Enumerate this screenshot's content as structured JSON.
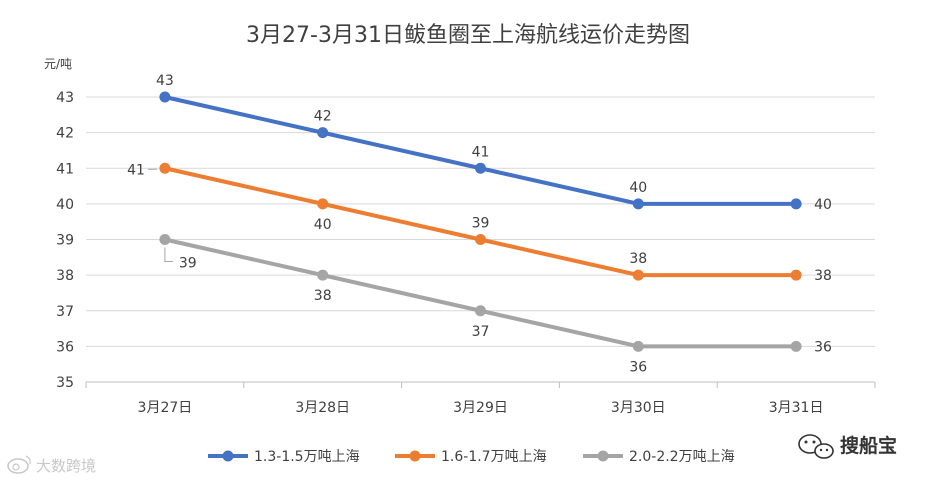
{
  "chart_data": {
    "type": "line",
    "title": "3月27-3月31日鲅鱼圈至上海航线运价走势图",
    "y_unit": "元/吨",
    "categories": [
      "3月27日",
      "3月28日",
      "3月29日",
      "3月30日",
      "3月31日"
    ],
    "ylim": [
      35,
      43
    ],
    "y_ticks": [
      "35",
      "36",
      "37",
      "38",
      "39",
      "40",
      "41",
      "42",
      "43"
    ],
    "grid": true,
    "legend_position": "bottom",
    "series": [
      {
        "name": "1.3-1.5万吨上海",
        "color": "#4472c4",
        "values": [
          43,
          42,
          41,
          40,
          40
        ]
      },
      {
        "name": "1.6-1.7万吨上海",
        "color": "#ed7d31",
        "values": [
          41,
          40,
          39,
          38,
          38
        ]
      },
      {
        "name": "2.0-2.2万吨上海",
        "color": "#a5a5a5",
        "values": [
          39,
          38,
          37,
          36,
          36
        ]
      }
    ]
  },
  "watermark": {
    "left": "大数跨境",
    "right": "搜船宝"
  }
}
